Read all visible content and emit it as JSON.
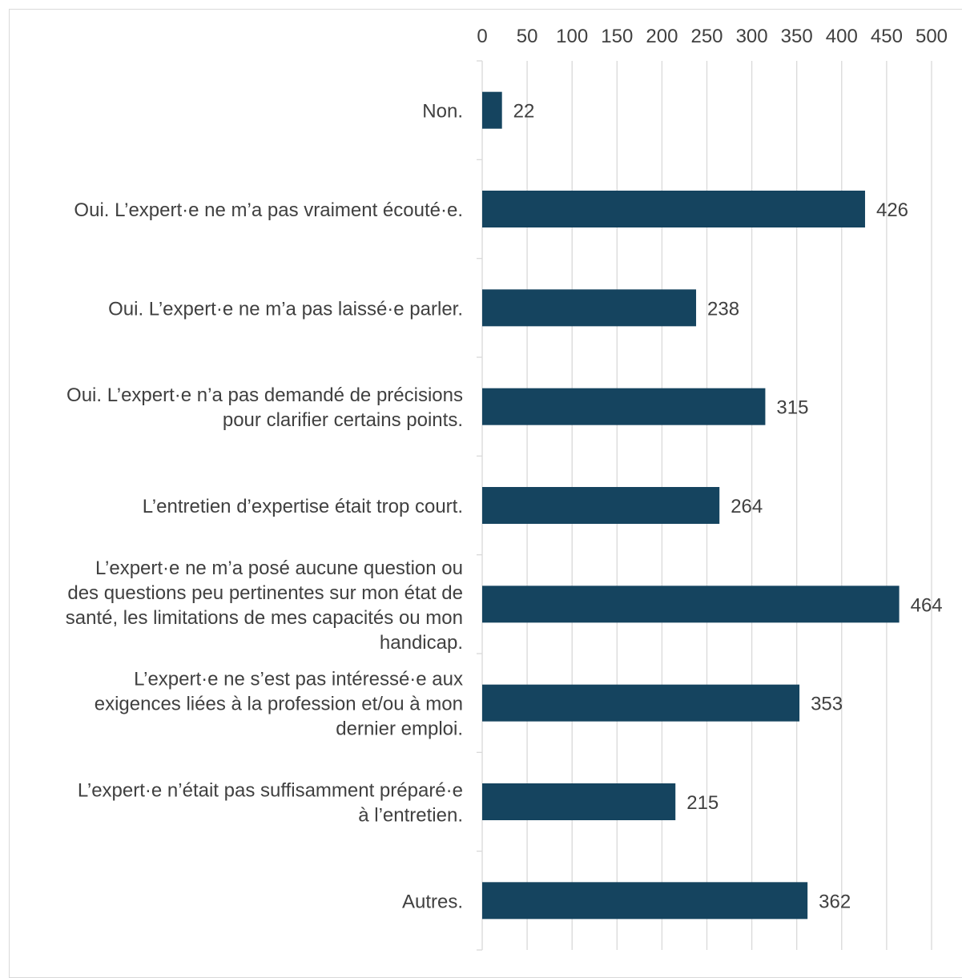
{
  "chart_data": {
    "type": "bar",
    "orientation": "horizontal",
    "title": "",
    "xlabel": "",
    "ylabel": "",
    "xlim": [
      0,
      500
    ],
    "x_ticks": [
      0,
      50,
      100,
      150,
      200,
      250,
      300,
      350,
      400,
      450,
      500
    ],
    "x_axis_position": "top",
    "grid": true,
    "legend": "none",
    "bar_color": "#15445f",
    "categories": [
      "Non.",
      "Oui. L’expert·e ne m’a pas vraiment écouté·e.",
      "Oui. L’expert·e ne m’a pas laissé·e parler.",
      "Oui. L’expert·e n’a pas demandé de précisions pour clarifier certains points.",
      "L’entretien d’expertise était trop court.",
      "L’expert·e ne m’a posé aucune question ou des questions peu pertinentes sur mon état de santé, les limitations de mes capacités ou mon handicap.",
      "L’expert·e ne s’est pas intéressé·e aux exigences liées à la profession et/ou à mon dernier  emploi.",
      "L’expert·e n’était pas suffisamment préparé·e à l’entretien.",
      "Autres."
    ],
    "category_lines": [
      [
        "Non."
      ],
      [
        "Oui. L’expert·e ne m’a pas vraiment écouté·e."
      ],
      [
        "Oui. L’expert·e ne m’a pas laissé·e parler."
      ],
      [
        "Oui. L’expert·e n’a pas demandé de précisions",
        "pour clarifier certains points."
      ],
      [
        "L’entretien d’expertise était trop court."
      ],
      [
        "L’expert·e ne m’a posé aucune question ou",
        "des questions peu pertinentes sur mon état de",
        "santé, les limitations de mes capacités ou mon",
        "handicap."
      ],
      [
        "L’expert·e ne s’est pas intéressé·e aux",
        "exigences liées à la profession et/ou à mon",
        "dernier  emploi."
      ],
      [
        "L’expert·e n’était pas suffisamment préparé·e",
        "à l’entretien."
      ],
      [
        "Autres."
      ]
    ],
    "values": [
      22,
      426,
      238,
      315,
      264,
      464,
      353,
      215,
      362
    ]
  }
}
